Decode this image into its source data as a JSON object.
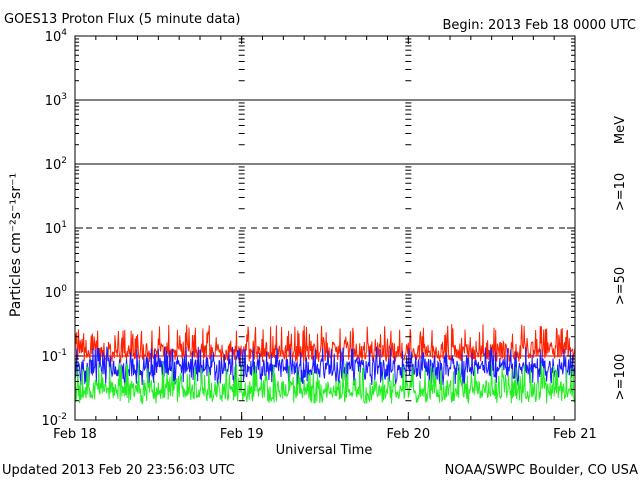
{
  "chart_data": {
    "type": "line",
    "title": "GOES13 Proton Flux (5 minute data)",
    "begin_label": "Begin: 2013 Feb 18 0000 UTC",
    "xlabel": "Universal Time",
    "ylabel": "Particles cm⁻²s⁻¹sr⁻¹",
    "y_scale": "log",
    "ylim": [
      0.01,
      10000
    ],
    "y_ticks": [
      {
        "value": 0.01,
        "base": "10",
        "exp": "-2"
      },
      {
        "value": 0.1,
        "base": "10",
        "exp": "-1"
      },
      {
        "value": 1,
        "base": "10",
        "exp": "0"
      },
      {
        "value": 10,
        "base": "10",
        "exp": "1"
      },
      {
        "value": 100,
        "base": "10",
        "exp": "2"
      },
      {
        "value": 1000,
        "base": "10",
        "exp": "3"
      },
      {
        "value": 10000,
        "base": "10",
        "exp": "4"
      }
    ],
    "x_ticks": [
      "Feb 18",
      "Feb 19",
      "Feb 20",
      "Feb 21"
    ],
    "xlim_days": [
      0,
      3
    ],
    "threshold_lines": [
      {
        "value": 1000,
        "style": "solid"
      },
      {
        "value": 100,
        "style": "solid"
      },
      {
        "value": 10,
        "style": "dashed"
      },
      {
        "value": 1,
        "style": "solid"
      },
      {
        "value": 0.1,
        "style": "solid",
        "color": "#c00000"
      }
    ],
    "series": [
      {
        "name": ">=10",
        "color": "#ff2000",
        "level": 0.12,
        "min": 0.08,
        "max": 0.3,
        "spikes_max": 0.32
      },
      {
        "name": ">=50",
        "color": "#1a1aff",
        "level": 0.065,
        "min": 0.035,
        "max": 0.14,
        "spikes_max": 0.14
      },
      {
        "name": ">=100",
        "color": "#22ee22",
        "level": 0.03,
        "min": 0.018,
        "max": 0.07,
        "spikes_max": 0.08
      }
    ],
    "units_label": "MeV",
    "grid": false
  },
  "footer": {
    "updated": "Updated 2013 Feb 20 23:56:03 UTC",
    "source": "NOAA/SWPC Boulder, CO USA"
  }
}
